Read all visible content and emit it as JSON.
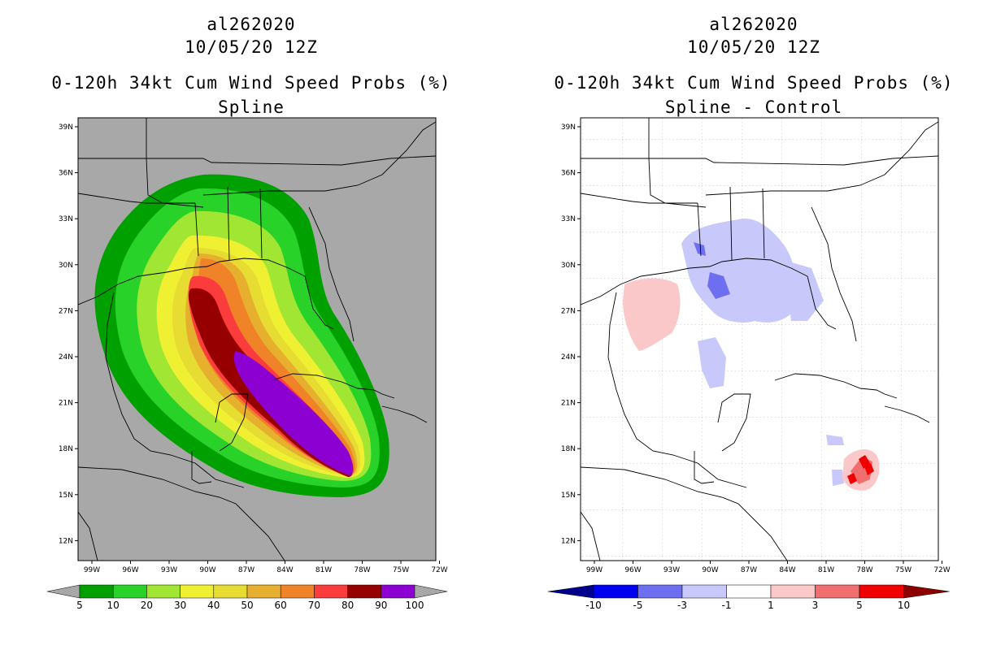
{
  "panels": [
    {
      "storm_id": "al262020",
      "init_time": "10/05/20 12Z",
      "product": "0-120h 34kt Cum Wind Speed Probs (%)",
      "subtitle": "Spline",
      "colorbar": {
        "labels": [
          "5",
          "10",
          "20",
          "30",
          "40",
          "50",
          "60",
          "70",
          "80",
          "90",
          "100"
        ],
        "colors": {
          "lt5": "#a8a8a8",
          "c5": "#00a000",
          "c10": "#28d228",
          "c20": "#a0e632",
          "c30": "#f0f032",
          "c40": "#e6dc32",
          "c50": "#e6af2d",
          "c60": "#f08228",
          "c70": "#fa3c3c",
          "c80": "#960000",
          "c90": "#8c00d2",
          "gt100": "#a8a8a8"
        }
      }
    },
    {
      "storm_id": "al262020",
      "init_time": "10/05/20 12Z",
      "product": "0-120h 34kt Cum Wind Speed Probs (%)",
      "subtitle": "Spline - Control",
      "colorbar": {
        "labels": [
          "-10",
          "-5",
          "-3",
          "-1",
          "1",
          "3",
          "5",
          "10"
        ],
        "colors": {
          "ltm10": "#00008c",
          "m10": "#0000f0",
          "m5": "#6e6ef0",
          "m3": "#c8c8fa",
          "m1": "#ffffff",
          "p1": "#fac8c8",
          "p3": "#f06e6e",
          "p5": "#f00000",
          "gt10": "#8c0000"
        }
      }
    }
  ],
  "axes": {
    "lat_labels": [
      "39N",
      "36N",
      "33N",
      "30N",
      "27N",
      "24N",
      "21N",
      "18N",
      "15N",
      "12N"
    ],
    "lon_labels": [
      "99W",
      "96W",
      "93W",
      "90W",
      "87W",
      "84W",
      "81W",
      "78W",
      "75W",
      "72W"
    ]
  }
}
